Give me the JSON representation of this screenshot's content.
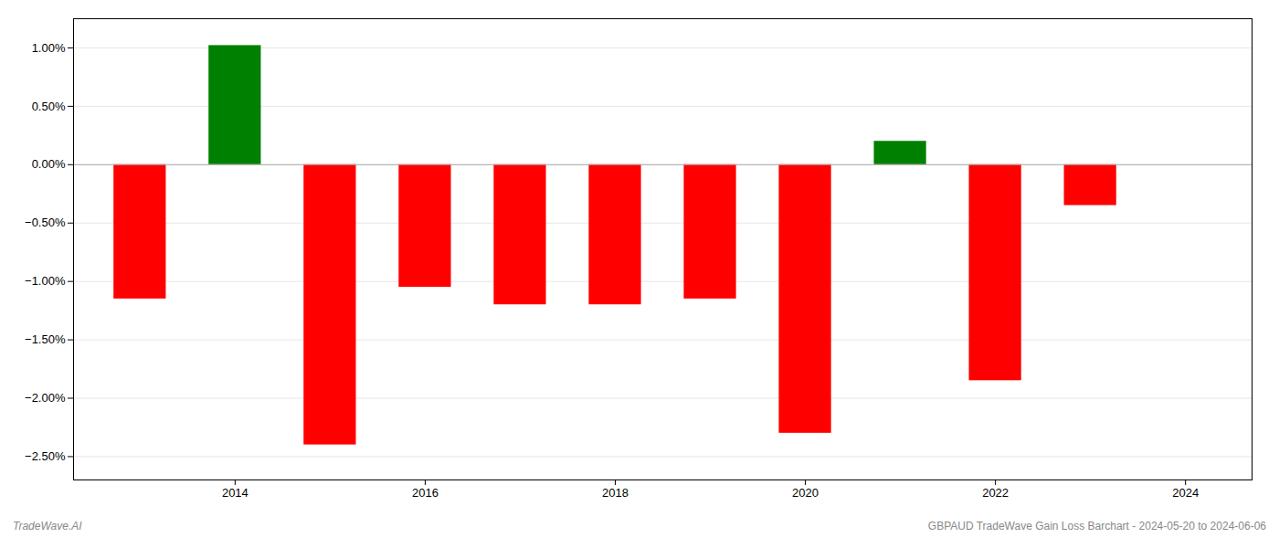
{
  "chart_data": {
    "type": "bar",
    "x": [
      2013,
      2014,
      2015,
      2016,
      2017,
      2018,
      2019,
      2020,
      2021,
      2022,
      2023
    ],
    "values": [
      -1.15,
      1.02,
      -2.4,
      -1.05,
      -1.2,
      -1.2,
      -1.15,
      -2.3,
      0.2,
      -1.85,
      -0.35
    ],
    "colors": [
      "#FF0000",
      "#008000",
      "#FF0000",
      "#FF0000",
      "#FF0000",
      "#FF0000",
      "#FF0000",
      "#FF0000",
      "#008000",
      "#FF0000",
      "#FF0000"
    ],
    "xlim": [
      2012.3,
      2024.7
    ],
    "xticks": [
      2014,
      2016,
      2018,
      2020,
      2022,
      2024
    ],
    "ylim": [
      -2.7,
      1.25
    ],
    "yticks": [
      {
        "value": -2.5,
        "label": "−2.50%"
      },
      {
        "value": -2.0,
        "label": "−2.00%"
      },
      {
        "value": -1.5,
        "label": "−1.50%"
      },
      {
        "value": -1.0,
        "label": "−1.00%"
      },
      {
        "value": -0.5,
        "label": "−0.50%"
      },
      {
        "value": 0.0,
        "label": "0.00%"
      },
      {
        "value": 0.5,
        "label": "0.50%"
      },
      {
        "value": 1.0,
        "label": "1.00%"
      }
    ],
    "grid": true,
    "annotations": [
      "TradeWave.AI",
      "GBPAUD TradeWave Gain Loss Barchart - 2024-05-20 to 2024-06-06"
    ]
  }
}
